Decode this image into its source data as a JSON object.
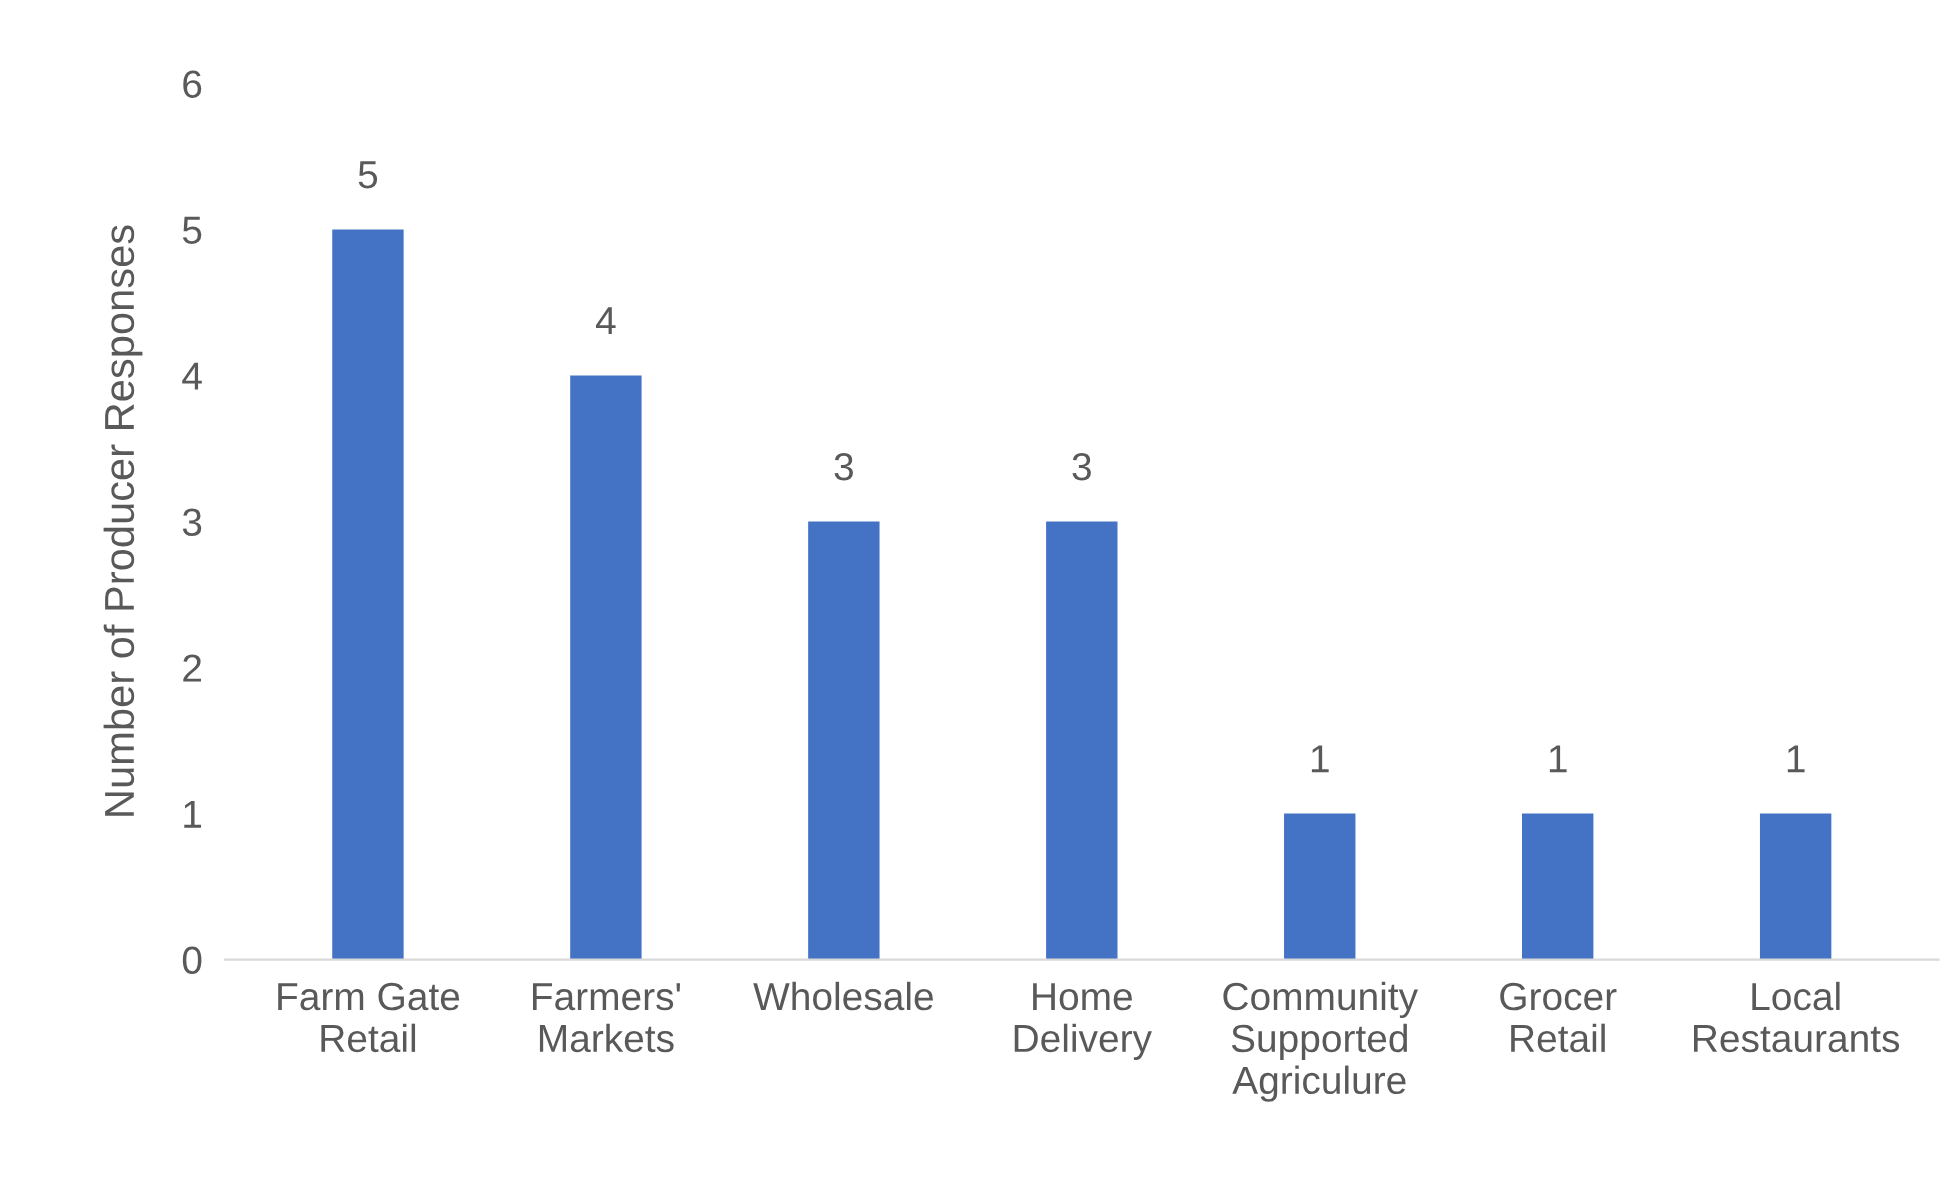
{
  "chart_data": {
    "type": "bar",
    "ylabel": "Number of Producer Responses",
    "categories": [
      "Farm Gate\nRetail",
      "Farmers'\nMarkets",
      "Wholesale",
      "Home\nDelivery",
      "Community\nSupported\nAgriculure",
      "Grocer\nRetail",
      "Local\nRestaurants"
    ],
    "values": [
      5,
      4,
      3,
      3,
      1,
      1,
      1
    ],
    "color": "#4472c4",
    "ylim": [
      0,
      6
    ],
    "yticks": [
      0,
      1,
      2,
      3,
      4,
      5,
      6
    ],
    "grid": false,
    "data_labels": true
  }
}
